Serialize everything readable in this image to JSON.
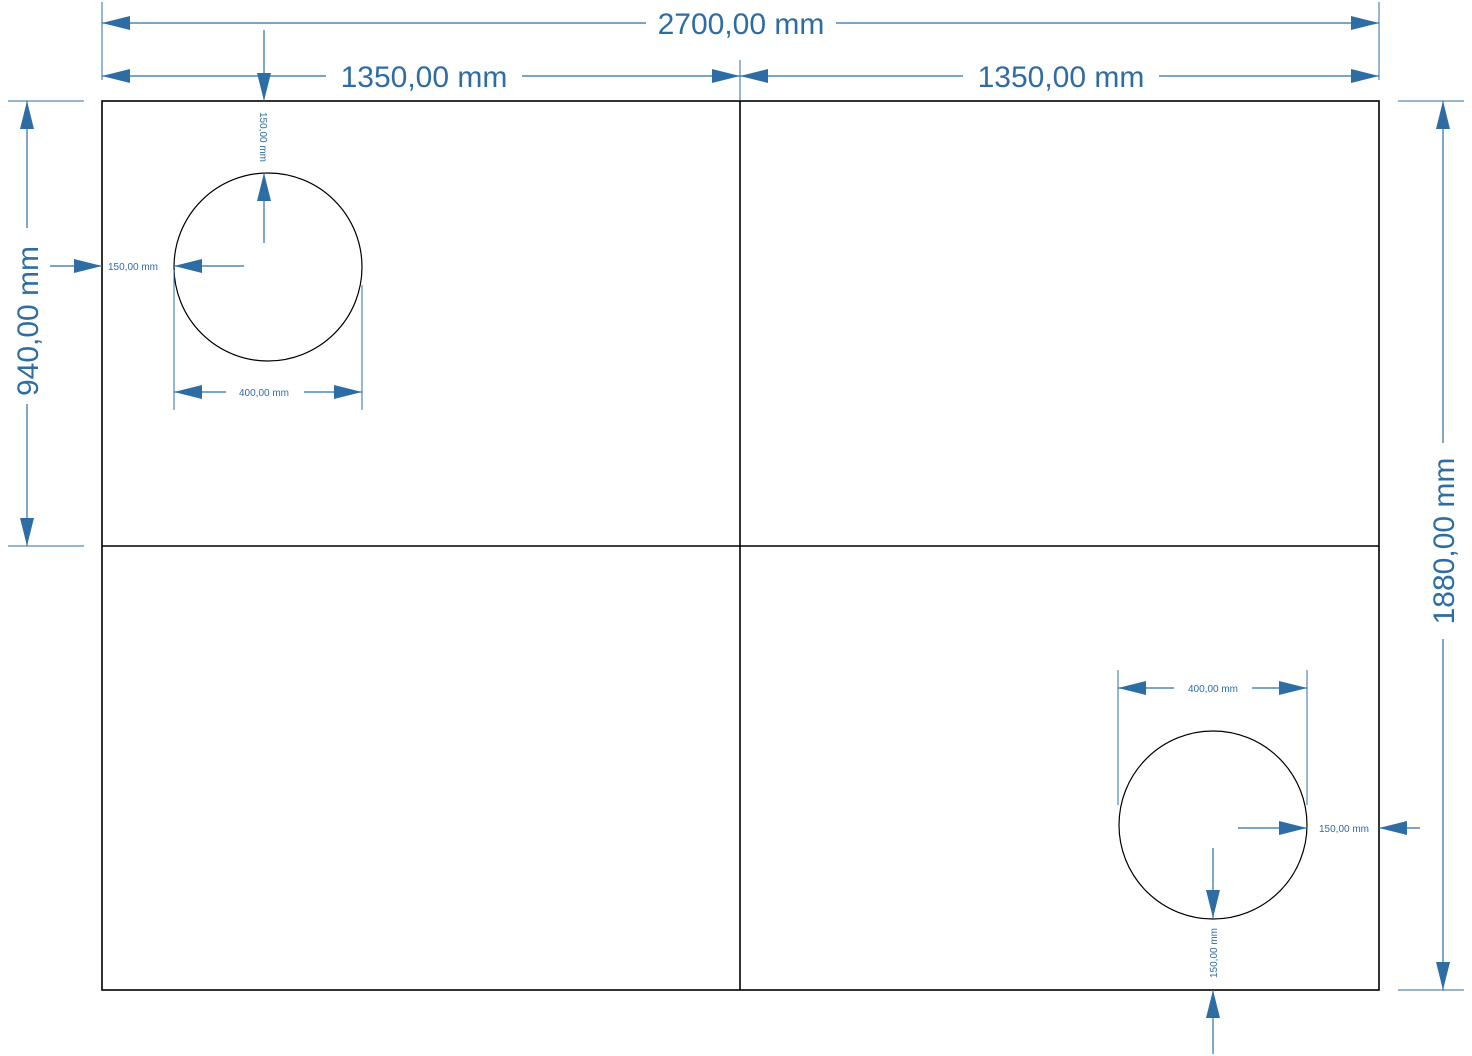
{
  "dimensions": {
    "total_width": "2700,00 mm",
    "half_width_left": "1350,00 mm",
    "half_width_right": "1350,00 mm",
    "half_height": "940,00 mm",
    "total_height": "1880,00 mm",
    "hole1_top_offset": "150,00 mm",
    "hole1_left_offset": "150,00 mm",
    "hole1_diameter": "400,00 mm",
    "hole2_diameter": "400,00 mm",
    "hole2_right_offset": "150,00 mm",
    "hole2_bottom_offset": "150,00 mm"
  },
  "colors": {
    "dimension": "#2e6da4",
    "outline": "#000000"
  }
}
